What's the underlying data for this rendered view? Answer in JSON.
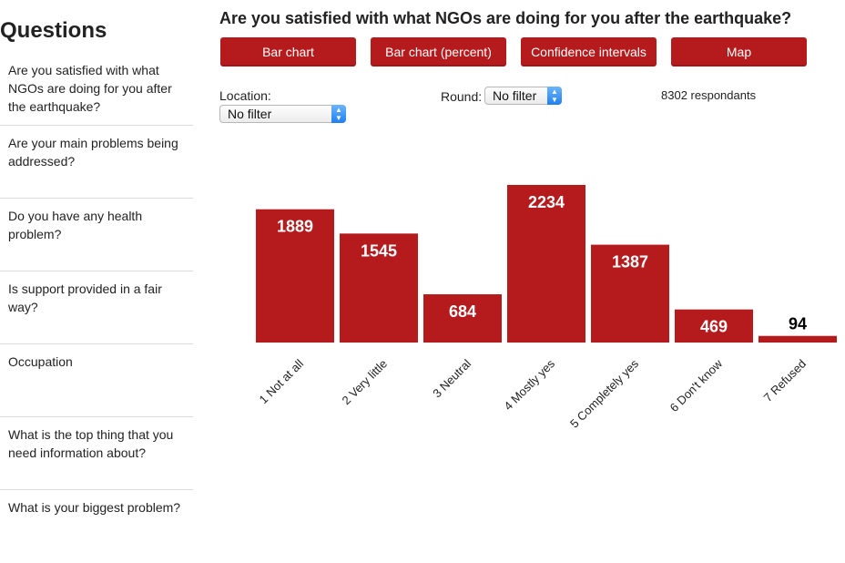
{
  "sidebar": {
    "title": "Questions",
    "items": [
      "Are you satisfied with what NGOs are doing for you after the earthquake?",
      "Are your main problems being addressed?",
      "Do you have any health problem?",
      "Is support provided in a fair way?",
      "Occupation",
      "What is the top thing that you need information about?",
      "What is your biggest problem?"
    ]
  },
  "main": {
    "title": "Are you satisfied with what NGOs are doing for you after the earthquake?",
    "buttons": {
      "bar_chart": "Bar chart",
      "bar_chart_percent": "Bar chart (percent)",
      "confidence_intervals": "Confidence intervals",
      "map": "Map"
    },
    "filters": {
      "location_label": "Location:",
      "location_value": "No filter",
      "round_label": "Round:",
      "round_value": "No filter"
    },
    "respondents": "8302 respondants"
  },
  "colors": {
    "accent": "#b51b1d",
    "label_inside": "#ffffff",
    "label_outside": "#000000"
  },
  "chart_data": {
    "type": "bar",
    "categories": [
      "1 Not at all",
      "2 Very little",
      "3 Neutral",
      "4 Mostly yes",
      "5 Completely yes",
      "6 Don't know",
      "7 Refused"
    ],
    "values": [
      1889,
      1545,
      684,
      2234,
      1387,
      469,
      94
    ],
    "title": "",
    "xlabel": "",
    "ylabel": "",
    "ylim": [
      0,
      2234
    ],
    "grid": false,
    "legend": "none"
  }
}
